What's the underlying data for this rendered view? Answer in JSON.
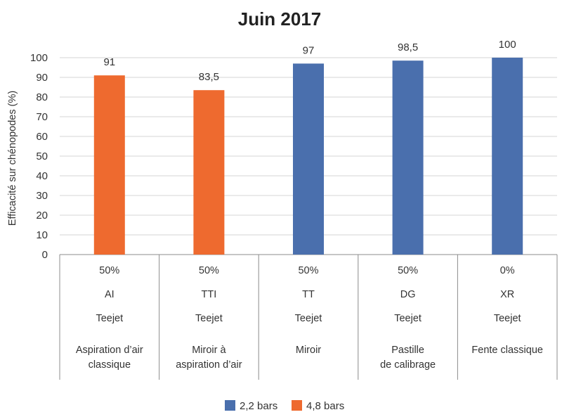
{
  "chart_data": {
    "type": "bar",
    "title": "Juin 2017",
    "ylabel": "Efficacité sur chénopodes (%)",
    "ylim": [
      0,
      100
    ],
    "yticks": [
      0,
      10,
      20,
      30,
      40,
      50,
      60,
      70,
      80,
      90,
      100
    ],
    "grid": true,
    "legend_position": "bottom",
    "categories": [
      {
        "rows": [
          "50%",
          "AI",
          "Teejet"
        ],
        "desc": [
          "Aspiration d’air",
          "classique"
        ]
      },
      {
        "rows": [
          "50%",
          "TTI",
          "Teejet"
        ],
        "desc": [
          "Miroir à",
          "aspiration d’air"
        ]
      },
      {
        "rows": [
          "50%",
          "TT",
          "Teejet"
        ],
        "desc": [
          "Miroir"
        ]
      },
      {
        "rows": [
          "50%",
          "DG",
          "Teejet"
        ],
        "desc": [
          "Pastille",
          "de calibrage"
        ]
      },
      {
        "rows": [
          "0%",
          "XR",
          "Teejet"
        ],
        "desc": [
          "Fente classique"
        ]
      }
    ],
    "series": [
      {
        "name": "2,2 bars",
        "color": "#4a6fad",
        "values": [
          null,
          null,
          97,
          98.5,
          100
        ]
      },
      {
        "name": "4,8 bars",
        "color": "#ee6a2f",
        "values": [
          91,
          83.5,
          null,
          null,
          null
        ]
      }
    ],
    "data_labels": [
      "91",
      "83,5",
      "97",
      "98,5",
      "100"
    ]
  }
}
